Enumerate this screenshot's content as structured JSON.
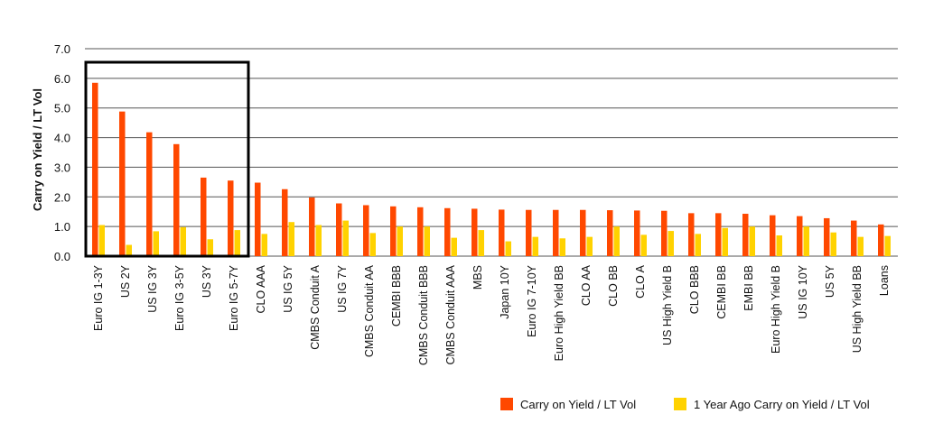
{
  "chart_data": {
    "type": "bar",
    "ylabel": "Carry on Yield / LT Vol",
    "ylim": [
      0,
      7
    ],
    "yticks": [
      "0.0",
      "1.0",
      "2.0",
      "3.0",
      "4.0",
      "5.0",
      "6.0",
      "7.0"
    ],
    "grid": true,
    "legend_position": "bottom-right",
    "categories": [
      "Euro IG 1-3Y",
      "US 2Y",
      "US IG 3Y",
      "Euro IG 3-5Y",
      "US 3Y",
      "Euro IG 5-7Y",
      "CLO AAA",
      "US IG 5Y",
      "CMBS Conduit A",
      "US IG 7Y",
      "CMBS Conduit AA",
      "CEMBI BBB",
      "CMBS Conduit BBB",
      "CMBS Conduit AAA",
      "MBS",
      "Japan 10Y",
      "Euro IG 7-10Y",
      "Euro High Yield BB",
      "CLO AA",
      "CLO BB",
      "CLO A",
      "US High Yield B",
      "CLO BBB",
      "CEMBI BB",
      "EMBI BB",
      "Euro High Yield B",
      "US IG 10Y",
      "US 5Y",
      "US High Yield BB",
      "Loans"
    ],
    "series": [
      {
        "name": "Carry on Yield / LT Vol",
        "color": "#ff4800",
        "values": [
          5.85,
          4.88,
          4.18,
          3.78,
          2.65,
          2.55,
          2.48,
          2.26,
          1.98,
          1.78,
          1.72,
          1.68,
          1.65,
          1.62,
          1.6,
          1.57,
          1.56,
          1.56,
          1.56,
          1.55,
          1.54,
          1.53,
          1.45,
          1.45,
          1.43,
          1.38,
          1.35,
          1.28,
          1.2,
          1.07
        ]
      },
      {
        "name": "1 Year Ago Carry on Yield / LT Vol",
        "color": "#ffd200",
        "values": [
          1.05,
          0.38,
          0.84,
          0.98,
          0.57,
          0.88,
          0.75,
          1.15,
          1.05,
          1.2,
          0.78,
          1.0,
          1.0,
          0.62,
          0.88,
          0.5,
          0.65,
          0.6,
          0.65,
          1.0,
          0.72,
          0.85,
          0.75,
          0.95,
          1.0,
          0.7,
          1.0,
          0.8,
          0.65,
          0.68
        ]
      }
    ],
    "highlight_box": {
      "from_category": "Euro IG 1-3Y",
      "to_category": "Euro IG 5-7Y"
    }
  }
}
